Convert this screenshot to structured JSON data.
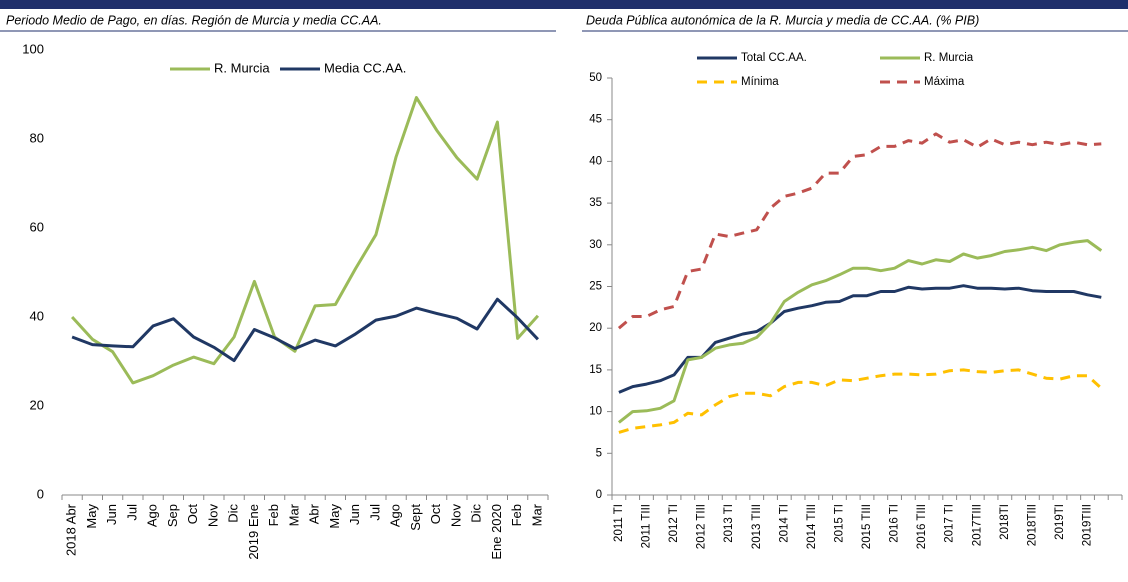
{
  "chart_data": [
    {
      "type": "line",
      "title": "Periodo Medio de Pago, en días. Región de Murcia y media CC.AA.",
      "categories": [
        "2018 Abr",
        "May",
        "Jun",
        "Jul",
        "Ago",
        "Sep",
        "Oct",
        "Nov",
        "Dic",
        "2019 Ene",
        "Feb",
        "Mar",
        "Abr",
        "May",
        "Jun",
        "Jul",
        "Ago",
        "Sept",
        "Oct",
        "Nov",
        "Dic",
        "Ene 2020",
        "Feb",
        "Mar"
      ],
      "series": [
        {
          "name": "R. Murcia",
          "color": "#9bbb59",
          "dashed": false,
          "values": [
            40,
            35,
            32.2,
            25.2,
            26.8,
            29.2,
            31,
            29.5,
            35.5,
            48,
            35.5,
            32.3,
            42.5,
            42.8,
            50.9,
            58.5,
            76,
            89.3,
            82,
            75.8,
            71,
            83.8,
            35.2,
            40.3
          ]
        },
        {
          "name": "Media CC.AA.",
          "color": "#203864",
          "dashed": false,
          "values": [
            35.5,
            33.8,
            33.5,
            33.3,
            38,
            39.6,
            35.5,
            33.2,
            30.2,
            37.2,
            35.3,
            32.9,
            34.8,
            33.5,
            36.2,
            39.3,
            40.2,
            42,
            40.8,
            39.7,
            37.3,
            44,
            39.8,
            35
          ]
        }
      ],
      "ylim": [
        0,
        100
      ],
      "yticks": [
        0,
        20,
        40,
        60,
        80,
        100
      ],
      "grid": false,
      "y_axis_line": false
    },
    {
      "type": "line",
      "title": "Deuda Pública autonómica de la R. Murcia y media de CC.AA. (% PIB)",
      "categories": [
        "2011 TI",
        null,
        "2011 TIII",
        null,
        "2012 TI",
        null,
        "2012 TIII",
        null,
        "2013 TI",
        null,
        "2013 TIII",
        null,
        "2014 TI",
        null,
        "2014 TIII",
        null,
        "2015 TI",
        null,
        "2015 TIII",
        null,
        "2016 TI",
        null,
        "2016 TIII",
        null,
        "2017 TI",
        null,
        "2017TIII",
        null,
        "2018TI",
        null,
        "2018TIII",
        null,
        "2019TI",
        null,
        "2019TIII",
        null,
        null
      ],
      "series": [
        {
          "name": "Total CC.AA.",
          "color": "#203864",
          "dashed": false,
          "values": [
            12.3,
            13.0,
            13.3,
            13.7,
            14.4,
            16.5,
            16.5,
            18.3,
            18.8,
            19.3,
            19.6,
            20.6,
            22.0,
            22.4,
            22.7,
            23.1,
            23.2,
            23.9,
            23.9,
            24.4,
            24.4,
            24.9,
            24.7,
            24.8,
            24.8,
            25.1,
            24.8,
            24.8,
            24.7,
            24.8,
            24.5,
            24.4,
            24.4,
            24.4,
            24.0,
            23.7,
            null
          ]
        },
        {
          "name": "R. Murcia",
          "color": "#9bbb59",
          "dashed": false,
          "values": [
            8.7,
            10.0,
            10.1,
            10.4,
            11.3,
            16.2,
            16.5,
            17.6,
            18.0,
            18.2,
            18.9,
            20.6,
            23.2,
            24.3,
            25.2,
            25.7,
            26.4,
            27.2,
            27.2,
            26.9,
            27.2,
            28.1,
            27.7,
            28.2,
            28.0,
            28.9,
            28.4,
            28.7,
            29.2,
            29.4,
            29.7,
            29.3,
            30.0,
            30.3,
            30.5,
            29.3,
            null
          ]
        },
        {
          "name": "Mínima",
          "color": "#ffc000",
          "dashed": true,
          "values": [
            7.5,
            8.0,
            8.2,
            8.4,
            8.7,
            9.8,
            9.6,
            10.8,
            11.8,
            12.2,
            12.2,
            11.9,
            13.0,
            13.5,
            13.5,
            13.1,
            13.8,
            13.7,
            14.0,
            14.3,
            14.5,
            14.5,
            14.4,
            14.5,
            14.9,
            15.0,
            14.8,
            14.7,
            14.9,
            15.0,
            14.5,
            14.0,
            13.9,
            14.3,
            14.3,
            12.8,
            null
          ]
        },
        {
          "name": "Máxima",
          "color": "#c0504d",
          "dashed": true,
          "values": [
            20.0,
            21.4,
            21.4,
            22.2,
            22.6,
            26.8,
            27.1,
            31.3,
            31.0,
            31.4,
            31.8,
            34.4,
            35.8,
            36.2,
            36.8,
            38.6,
            38.6,
            40.6,
            40.8,
            41.8,
            41.8,
            42.5,
            42.2,
            43.3,
            42.3,
            42.6,
            41.7,
            42.7,
            42.0,
            42.3,
            42.0,
            42.3,
            42.0,
            42.3,
            42.0,
            42.1,
            null
          ]
        }
      ],
      "ylim": [
        0,
        50
      ],
      "yticks": [
        0,
        5,
        10,
        15,
        20,
        25,
        30,
        35,
        40,
        45,
        50
      ],
      "grid": false,
      "y_axis_line": true
    }
  ]
}
